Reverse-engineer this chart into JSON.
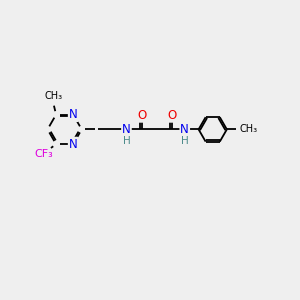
{
  "bg_color": "#efefef",
  "atom_colors": {
    "N": "#0000ee",
    "O": "#ee0000",
    "F": "#dd00dd",
    "C": "#000000",
    "H": "#4a8a8a"
  },
  "bond_color": "#000000",
  "font_size_atoms": 8.5,
  "font_size_labels": 7.0,
  "lw": 1.3,
  "xlim": [
    0,
    10
  ],
  "ylim": [
    0,
    10
  ]
}
